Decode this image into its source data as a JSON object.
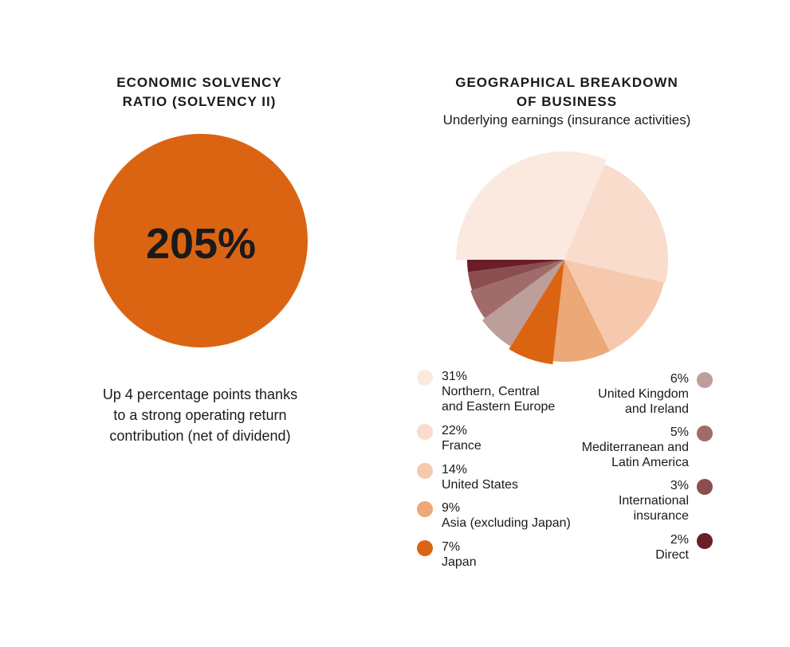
{
  "left_panel": {
    "title": "ECONOMIC SOLVENCY\nRATIO (SOLVENCY II)",
    "value_label": "205%",
    "caption": "Up 4 percentage points thanks\nto a strong operating return\ncontribution (net of dividend)",
    "color": "#db6412"
  },
  "right_panel": {
    "title": "GEOGRAPHICAL BREAKDOWN\nOF BUSINESS",
    "subtitle": "Underlying earnings (insurance activities)"
  },
  "chart_data": [
    {
      "type": "pie",
      "title": "ECONOMIC SOLVENCY RATIO (SOLVENCY II)",
      "values": [
        205
      ],
      "labels": [
        "205%"
      ],
      "colors": [
        "#db6412"
      ]
    },
    {
      "type": "pie",
      "title": "GEOGRAPHICAL BREAKDOWN OF BUSINESS",
      "subtitle": "Underlying earnings (insurance activities)",
      "slices": [
        {
          "pct": "31%",
          "value": 31,
          "label": "Northern, Central\nand Eastern Europe",
          "color": "#fbe9df"
        },
        {
          "pct": "22%",
          "value": 22,
          "label": "France",
          "color": "#f9dccb"
        },
        {
          "pct": "14%",
          "value": 14,
          "label": "United States",
          "color": "#f6c9ae"
        },
        {
          "pct": "9%",
          "value": 9,
          "label": "Asia (excluding Japan)",
          "color": "#eca876"
        },
        {
          "pct": "7%",
          "value": 7,
          "label": "Japan",
          "color": "#db6412"
        },
        {
          "pct": "6%",
          "value": 6,
          "label": "United Kingdom\nand Ireland",
          "color": "#bc9e9a"
        },
        {
          "pct": "5%",
          "value": 5,
          "label": "Mediterranean and\nLatin America",
          "color": "#a06c69"
        },
        {
          "pct": "3%",
          "value": 3,
          "label": "International\ninsurance",
          "color": "#8a4e4e"
        },
        {
          "pct": "2%",
          "value": 2,
          "label": "Direct",
          "color": "#6a1e2a"
        }
      ]
    }
  ]
}
